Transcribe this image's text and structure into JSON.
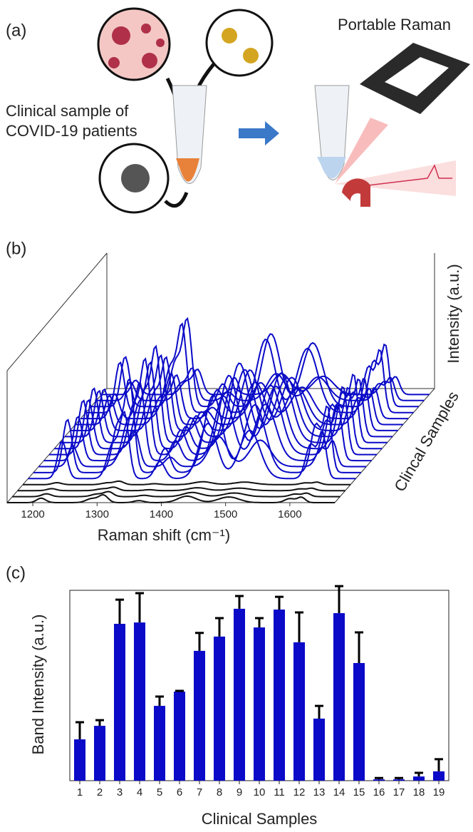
{
  "panel_a": {
    "label": "(a)",
    "device": "Portable Raman",
    "sample_line1": "Clinical sample of",
    "sample_line2": "COVID-19 patients"
  },
  "chart_data": [
    {
      "type": "waterfall",
      "panel": "(b)",
      "xlabel": "Raman shift (cm⁻¹)",
      "ylabel": "Intensity (a.u.)",
      "zlabel": "Clincal Samples",
      "xlim": [
        1160,
        1670
      ],
      "xticks": [
        1200,
        1300,
        1400,
        1500,
        1600
      ]
    },
    {
      "type": "bar",
      "panel": "(c)",
      "xlabel": "Clinical Samples",
      "ylabel": "Band Intensity (a.u.)",
      "categories": [
        "1",
        "2",
        "3",
        "4",
        "5",
        "6",
        "7",
        "8",
        "9",
        "10",
        "11",
        "12",
        "13",
        "14",
        "15",
        "16",
        "17",
        "18",
        "19"
      ],
      "values": [
        21.7,
        28.8,
        82.4,
        83.1,
        39.3,
        46.8,
        68.2,
        75.7,
        90.3,
        80.5,
        89.9,
        72.7,
        32.6,
        88.0,
        61.8,
        0.7,
        0.7,
        2.2,
        4.9
      ],
      "errors": [
        9.0,
        3.0,
        12.7,
        15.4,
        4.9,
        0.4,
        9.4,
        9.7,
        6.7,
        4.9,
        6.7,
        15.7,
        6.7,
        14.2,
        16.1,
        0.7,
        0.7,
        1.9,
        6.4
      ],
      "color": "#0a0ac8",
      "error_color": "#000000",
      "ylim": [
        0,
        100
      ]
    }
  ]
}
